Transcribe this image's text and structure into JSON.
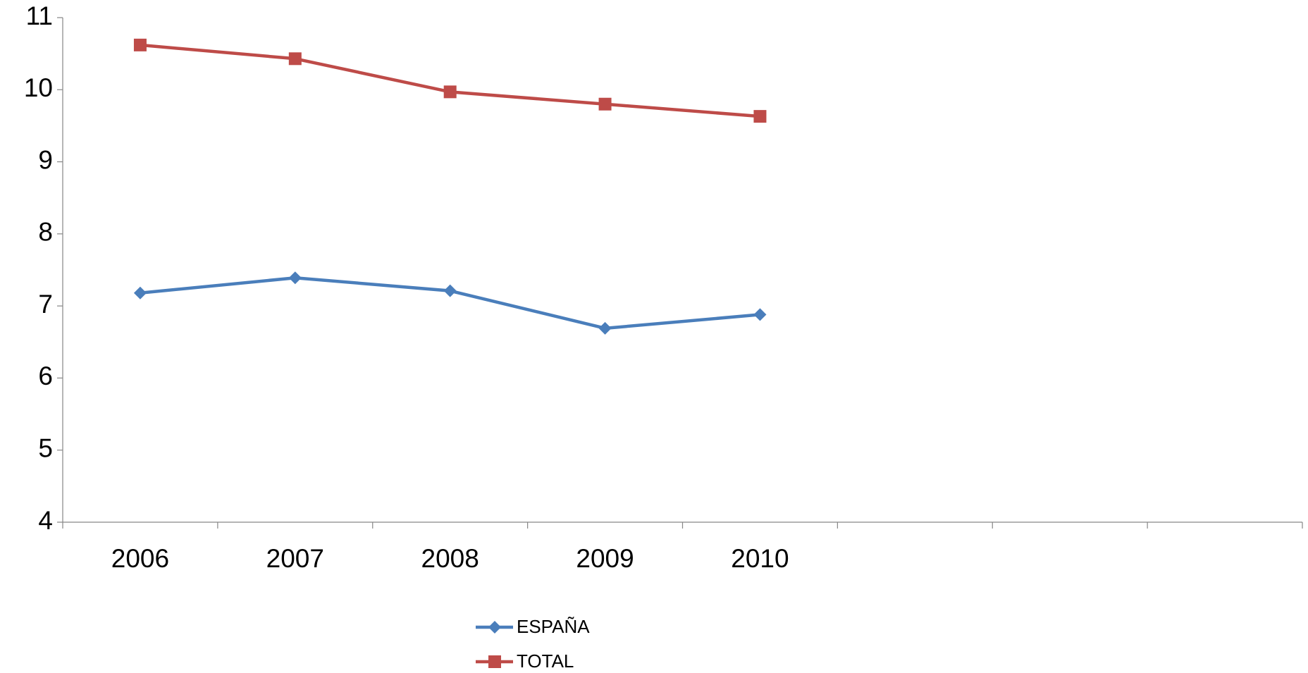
{
  "chart_data": {
    "type": "line",
    "categories": [
      "2006",
      "2007",
      "2008",
      "2009",
      "2010",
      null,
      null,
      null
    ],
    "series": [
      {
        "name": "ESPAÑA",
        "color": "#4a7ebb",
        "marker": "diamond",
        "values": [
          7.18,
          7.39,
          7.21,
          6.69,
          6.88,
          null,
          null,
          null
        ]
      },
      {
        "name": "TOTAL",
        "color": "#be4b48",
        "marker": "square",
        "values": [
          10.62,
          10.43,
          9.97,
          9.8,
          9.63,
          null,
          null,
          null
        ]
      }
    ],
    "ylim": [
      4,
      11
    ],
    "yticks": [
      4,
      5,
      6,
      7,
      8,
      9,
      10,
      11
    ],
    "grid": false,
    "legend": "bottom"
  }
}
